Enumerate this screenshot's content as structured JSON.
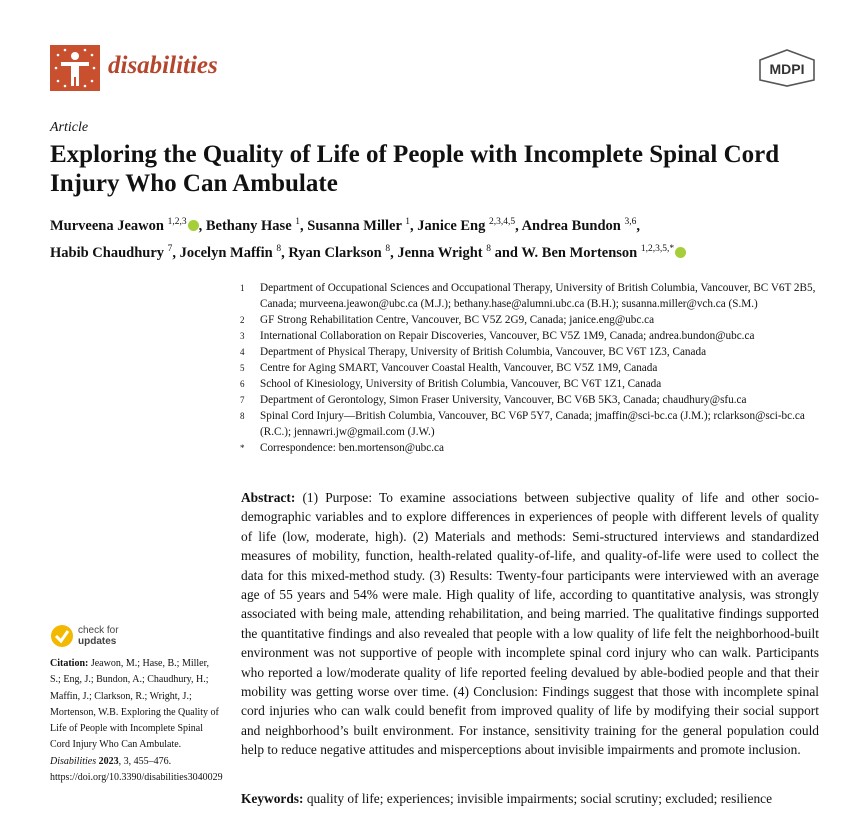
{
  "header": {
    "journal": "disabilities",
    "publisher": "MDPI"
  },
  "article_type": "Article",
  "title": "Exploring the Quality of Life of People with Incomplete Spinal Cord Injury Who Can Ambulate",
  "authors": {
    "separator": ", ",
    "conjunction": "and",
    "list": [
      {
        "name": "Murveena Jeawon",
        "sup": "1,2,3"
      },
      {
        "name": "Bethany Hase",
        "sup": "1"
      },
      {
        "name": "Susanna Miller",
        "sup": "1"
      },
      {
        "name": "Janice Eng",
        "sup": "2,3,4,5"
      },
      {
        "name": "Andrea Bundon",
        "sup": "3,6"
      },
      {
        "name": "Habib Chaudhury",
        "sup": "7"
      },
      {
        "name": "Jocelyn Maffin",
        "sup": "8"
      },
      {
        "name": "Ryan Clarkson",
        "sup": "8"
      },
      {
        "name": "Jenna Wright",
        "sup": "8"
      },
      {
        "name": "W. Ben Mortenson",
        "sup": "1,2,3,5,*"
      }
    ]
  },
  "affiliations": [
    {
      "mark": "1",
      "text": "Department of Occupational Sciences and Occupational Therapy, University of British Columbia, Vancouver, BC V6T 2B5, Canada; murveena.jeawon@ubc.ca (M.J.); bethany.hase@alumni.ubc.ca (B.H.); susanna.miller@vch.ca (S.M.)"
    },
    {
      "mark": "2",
      "text": "GF Strong Rehabilitation Centre, Vancouver, BC V5Z 2G9, Canada; janice.eng@ubc.ca"
    },
    {
      "mark": "3",
      "text": "International Collaboration on Repair Discoveries, Vancouver, BC V5Z 1M9, Canada; andrea.bundon@ubc.ca"
    },
    {
      "mark": "4",
      "text": "Department of Physical Therapy, University of British Columbia, Vancouver, BC V6T 1Z3, Canada"
    },
    {
      "mark": "5",
      "text": "Centre for Aging SMART, Vancouver Coastal Health, Vancouver, BC V5Z 1M9, Canada"
    },
    {
      "mark": "6",
      "text": "School of Kinesiology, University of British Columbia, Vancouver, BC V6T 1Z1, Canada"
    },
    {
      "mark": "7",
      "text": "Department of Gerontology, Simon Fraser University, Vancouver, BC V6B 5K3, Canada; chaudhury@sfu.ca"
    },
    {
      "mark": "8",
      "text": "Spinal Cord Injury—British Columbia, Vancouver, BC V6P 5Y7, Canada; jmaffin@sci-bc.ca (J.M.); rclarkson@sci-bc.ca (R.C.); jennawri.jw@gmail.com (J.W.)"
    },
    {
      "mark": "*",
      "text": "Correspondence: ben.mortenson@ubc.ca"
    }
  ],
  "abstract": {
    "label": "Abstract:",
    "text": "(1) Purpose: To examine associations between subjective quality of life and other socio-demographic variables and to explore differences in experiences of people with different levels of quality of life (low, moderate, high). (2) Materials and methods: Semi-structured interviews and standardized measures of mobility, function, health-related quality-of-life, and quality-of-life were used to collect the data for this mixed-method study. (3) Results: Twenty-four participants were interviewed with an average age of 55 years and 54% were male. High quality of life, according to quantitative analysis, was strongly associated with being male, attending rehabilitation, and being married. The qualitative findings supported the quantitative findings and also revealed that people with a low quality of life felt the neighborhood-built environment was not supportive of people with incomplete spinal cord injury who can walk. Participants who reported a low/moderate quality of life reported feeling devalued by able-bodied people and that their mobility was getting worse over time. (4) Conclusion: Findings suggest that those with incomplete spinal cord injuries who can walk could benefit from improved quality of life by modifying their social support and neighborhood’s built environment. For instance, sensitivity training for the general population could help to reduce negative attitudes and misperceptions about invisible impairments and promote inclusion."
  },
  "keywords": {
    "label": "Keywords:",
    "text": "quality of life; experiences; invisible impairments; social scrutiny; excluded; resilience"
  },
  "sidebar": {
    "check_updates": {
      "line1": "check for",
      "line2": "updates"
    },
    "citation": {
      "label": "Citation:",
      "authors_title": " Jeawon, M.; Hase, B.; Miller, S.; Eng, J.; Bundon, A.; Chaudhury, H.; Maffin, J.; Clarkson, R.; Wright, J.; Mortenson, W.B. Exploring the Quality of Life of People with Incomplete Spinal Cord Injury Who Can Ambulate. ",
      "journal": "Disabilities",
      "year": " 2023",
      "rest": ", 3, 455–476. https://doi.org/10.3390/disabilities3040029"
    }
  }
}
